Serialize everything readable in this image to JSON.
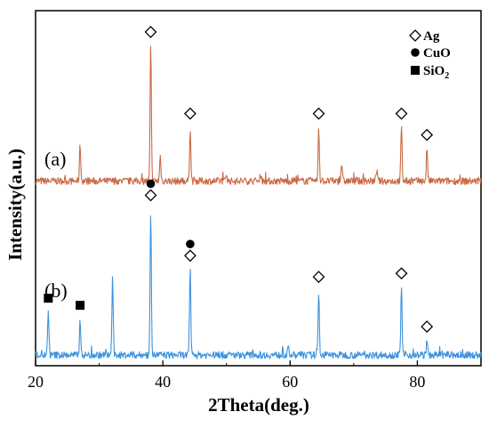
{
  "chart_data": {
    "type": "line",
    "title": "",
    "xlabel": "2Theta(deg.)",
    "ylabel": "Intensity(a.u.)",
    "xlim": [
      20,
      90
    ],
    "ylim": [
      0,
      100
    ],
    "x_ticks": [
      20,
      40,
      60,
      80
    ],
    "y_ticks_shown": false,
    "grid": false,
    "legend_placement": "top-right",
    "legend": [
      {
        "marker": "diamond-open",
        "label": "Ag"
      },
      {
        "marker": "circle-filled",
        "label": "CuO"
      },
      {
        "marker": "square-filled",
        "label": "SiO",
        "subscript": "2"
      }
    ],
    "series": [
      {
        "label": "(a)",
        "color": "#c96a45",
        "baseline": 52,
        "peaks": [
          [
            27.0,
            10
          ],
          [
            38.1,
            38
          ],
          [
            39.6,
            7
          ],
          [
            44.3,
            15
          ],
          [
            50.0,
            2
          ],
          [
            55.4,
            2
          ],
          [
            64.5,
            15
          ],
          [
            68.1,
            5
          ],
          [
            73.6,
            3
          ],
          [
            77.5,
            15
          ],
          [
            81.5,
            9
          ]
        ],
        "markers": [
          {
            "x": 38.1,
            "type": "diamond-open"
          },
          {
            "x": 44.3,
            "type": "diamond-open"
          },
          {
            "x": 64.5,
            "type": "diamond-open"
          },
          {
            "x": 77.5,
            "type": "diamond-open"
          },
          {
            "x": 81.5,
            "type": "diamond-open"
          }
        ]
      },
      {
        "label": "(b)",
        "color": "#3b93de",
        "baseline": 3,
        "peaks": [
          [
            22.0,
            12
          ],
          [
            27.0,
            10
          ],
          [
            32.1,
            22
          ],
          [
            38.1,
            41
          ],
          [
            44.3,
            24
          ],
          [
            59.7,
            2
          ],
          [
            64.5,
            18
          ],
          [
            77.5,
            19
          ],
          [
            81.5,
            4
          ]
        ],
        "markers": [
          {
            "x": 22.0,
            "type": "square-filled"
          },
          {
            "x": 27.0,
            "type": "square-filled"
          },
          {
            "x": 38.1,
            "type": "diamond-open"
          },
          {
            "x": 38.1,
            "type": "circle-filled"
          },
          {
            "x": 44.3,
            "type": "diamond-open"
          },
          {
            "x": 44.3,
            "type": "circle-filled"
          },
          {
            "x": 64.5,
            "type": "diamond-open"
          },
          {
            "x": 77.5,
            "type": "diamond-open"
          },
          {
            "x": 81.5,
            "type": "diamond-open"
          }
        ]
      }
    ]
  }
}
